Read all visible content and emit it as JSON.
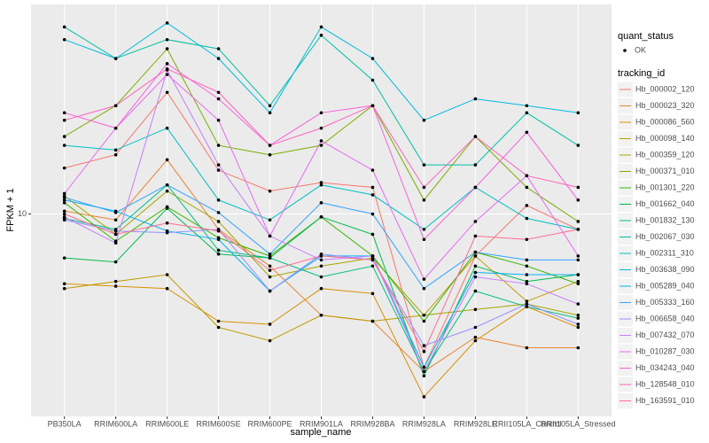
{
  "chart_data": {
    "type": "line",
    "x_label": "sample_name",
    "y_label": "FPKM + 1",
    "log_y": true,
    "grid": true,
    "point_color": "#000000",
    "legend_position": "right",
    "legend_titles": [
      "quant_status",
      "tracking_id"
    ],
    "status_levels": [
      "OK"
    ],
    "ylim": [
      2.5,
      42
    ],
    "yticks": [
      10
    ],
    "categories": [
      "PB350LA",
      "RRIM600LA",
      "RRIM600LE",
      "RRIM600SE",
      "RRIM600PE",
      "RRIM901LA",
      "RRIM928BA",
      "RRIM928LA",
      "RRIM928LE",
      "RRII105LA_Control",
      "RRII105LA_Stressed"
    ],
    "series": [
      {
        "name": "Hb_000002_120",
        "color": "#F8766D",
        "values": [
          13.7,
          15,
          23,
          13.5,
          11.7,
          12.4,
          12,
          3.5,
          7.5,
          10.6,
          9.0
        ]
      },
      {
        "name": "Hb_000023_320",
        "color": "#EA8331",
        "values": [
          10.2,
          9.6,
          14.5,
          9.0,
          7.0,
          5.0,
          4.8,
          3.4,
          4.3,
          4.0,
          4.0
        ]
      },
      {
        "name": "Hb_000086_560",
        "color": "#D89000",
        "values": [
          6.2,
          6.1,
          6.0,
          4.8,
          4.7,
          6.0,
          5.8,
          2.86,
          4.2,
          5.3,
          4.6
        ]
      },
      {
        "name": "Hb_000098_140",
        "color": "#C09B00",
        "values": [
          6.0,
          6.3,
          6.6,
          4.6,
          4.2,
          5.0,
          4.8,
          5.0,
          7.5,
          5.5,
          6.3
        ]
      },
      {
        "name": "Hb_000359_120",
        "color": "#A3A500",
        "values": [
          11.3,
          8.7,
          11.7,
          9.5,
          6.5,
          7.0,
          7.4,
          5.0,
          5.2,
          5.4,
          5.0
        ]
      },
      {
        "name": "Hb_000371_010",
        "color": "#7CAE00",
        "values": [
          17,
          21,
          31,
          16,
          15,
          16,
          21,
          11,
          17,
          12,
          9.5
        ]
      },
      {
        "name": "Hb_001301_220",
        "color": "#39B600",
        "values": [
          10.8,
          8.3,
          10.5,
          8.5,
          7.5,
          9.8,
          7.5,
          4.8,
          7.7,
          7.0,
          6.2
        ]
      },
      {
        "name": "Hb_001662_040",
        "color": "#00BB4E",
        "values": [
          7.4,
          7.2,
          10.4,
          7.6,
          7.4,
          9.8,
          8.7,
          3.3,
          7.0,
          6.3,
          6.6
        ]
      },
      {
        "name": "Hb_001832_130",
        "color": "#00BF7D",
        "values": [
          9.7,
          9.0,
          12.2,
          7.8,
          7.4,
          6.5,
          7.0,
          3.4,
          5.9,
          5.3,
          4.9
        ]
      },
      {
        "name": "Hb_002067_030",
        "color": "#00C1A3",
        "values": [
          36,
          29,
          33,
          31,
          21,
          34,
          25,
          14,
          14,
          20,
          16
        ]
      },
      {
        "name": "Hb_002311_310",
        "color": "#00BFC4",
        "values": [
          16,
          15.5,
          18,
          11,
          9.6,
          12.2,
          11.4,
          9,
          12,
          9.7,
          9
        ]
      },
      {
        "name": "Hb_003638_090",
        "color": "#00BAE0",
        "values": [
          33,
          29,
          37,
          29,
          20,
          36,
          29,
          19,
          22,
          21,
          20
        ]
      },
      {
        "name": "Hb_005289_040",
        "color": "#00B0F6",
        "values": [
          11,
          10.2,
          8.9,
          8.4,
          5.9,
          7.5,
          7.5,
          3.5,
          6.7,
          6.6,
          6.6
        ]
      },
      {
        "name": "Hb_005333_160",
        "color": "#35A2FF",
        "values": [
          11.2,
          10.1,
          12.2,
          10.1,
          7.6,
          10.8,
          10,
          6,
          7.7,
          7.3,
          7.3
        ]
      },
      {
        "name": "Hb_006658_040",
        "color": "#9590FF",
        "values": [
          9.6,
          8.9,
          8.8,
          9.0,
          5.9,
          7.6,
          7.3,
          4.06,
          4.6,
          5.4,
          4.7
        ]
      },
      {
        "name": "Hb_007432_070",
        "color": "#C77CFF",
        "values": [
          9.8,
          8.2,
          26.8,
          14,
          8.6,
          7.3,
          7.5,
          3.4,
          6.5,
          6.2,
          5.4
        ]
      },
      {
        "name": "Hb_010287_030",
        "color": "#E76BF3",
        "values": [
          11.5,
          18,
          26,
          19,
          8.6,
          16.5,
          13.5,
          6.4,
          9.5,
          13,
          7.5
        ]
      },
      {
        "name": "Hb_034243_040",
        "color": "#FA62DB",
        "values": [
          20,
          18,
          28,
          22,
          16,
          20,
          21,
          8.4,
          12,
          17.5,
          11
        ]
      },
      {
        "name": "Hb_128548_010",
        "color": "#FF62BC",
        "values": [
          19,
          21,
          27,
          23,
          16,
          18,
          21,
          12,
          17,
          13,
          12
        ]
      },
      {
        "name": "Hb_163591_010",
        "color": "#FF6C91",
        "values": [
          10,
          8.7,
          9.4,
          8.9,
          6.8,
          7.5,
          7.3,
          3.9,
          8.6,
          8.4,
          9.0
        ]
      }
    ]
  }
}
